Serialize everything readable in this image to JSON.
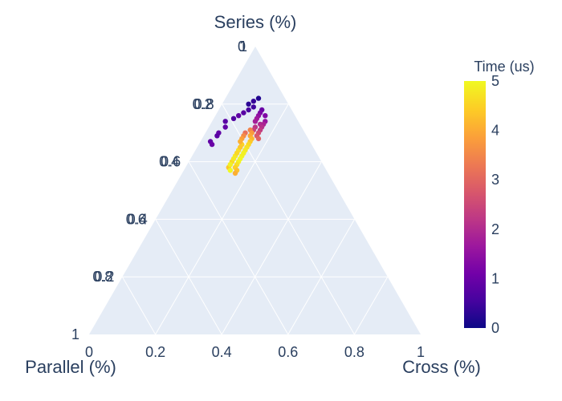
{
  "chart_data": {
    "type": "ternary-scatter",
    "axes": {
      "a": {
        "title": "Series (%)",
        "ticks": [
          "0.2",
          "0.4",
          "0.6",
          "0.8",
          "1"
        ]
      },
      "b": {
        "title": "Parallel (%)",
        "ticks": [
          "0",
          "0.2",
          "0.4",
          "0.6",
          "0.8",
          "1"
        ]
      },
      "c": {
        "title": "Cross (%)",
        "ticks": [
          "0",
          "0.2",
          "0.4",
          "0.6",
          "0.8",
          "1"
        ]
      }
    },
    "colorbar": {
      "title": "Time (us)",
      "range": [
        0,
        5
      ],
      "ticks": [
        "0",
        "1",
        "2",
        "3",
        "4",
        "5"
      ],
      "colorscale": [
        "#0d0887",
        "#46039f",
        "#7201a8",
        "#9c179e",
        "#bd3786",
        "#d8576b",
        "#ed7953",
        "#fb9f3a",
        "#fdca26",
        "#f0f921"
      ]
    },
    "points_series_fraction_and_parallel_fraction_and_time": [
      [
        0.82,
        0.08,
        0.2
      ],
      [
        0.81,
        0.1,
        0.4
      ],
      [
        0.8,
        0.12,
        0.3
      ],
      [
        0.79,
        0.11,
        0.5
      ],
      [
        0.78,
        0.13,
        0.6
      ],
      [
        0.77,
        0.15,
        0.8
      ],
      [
        0.76,
        0.17,
        0.9
      ],
      [
        0.75,
        0.19,
        0.7
      ],
      [
        0.74,
        0.22,
        0.8
      ],
      [
        0.72,
        0.23,
        0.9
      ],
      [
        0.7,
        0.26,
        0.9
      ],
      [
        0.69,
        0.27,
        0.8
      ],
      [
        0.67,
        0.3,
        0.9
      ],
      [
        0.66,
        0.3,
        1.0
      ],
      [
        0.78,
        0.09,
        1.0
      ],
      [
        0.77,
        0.1,
        1.2
      ],
      [
        0.76,
        0.11,
        1.5
      ],
      [
        0.75,
        0.12,
        1.7
      ],
      [
        0.74,
        0.13,
        1.8
      ],
      [
        0.73,
        0.12,
        2.0
      ],
      [
        0.72,
        0.14,
        2.2
      ],
      [
        0.71,
        0.15,
        2.4
      ],
      [
        0.76,
        0.09,
        1.3
      ],
      [
        0.74,
        0.1,
        1.6
      ],
      [
        0.73,
        0.11,
        1.9
      ],
      [
        0.72,
        0.12,
        2.1
      ],
      [
        0.71,
        0.13,
        2.3
      ],
      [
        0.7,
        0.14,
        2.6
      ],
      [
        0.69,
        0.15,
        2.8
      ],
      [
        0.68,
        0.15,
        3.0
      ],
      [
        0.71,
        0.16,
        3.5
      ],
      [
        0.7,
        0.16,
        3.8
      ],
      [
        0.69,
        0.17,
        4.0
      ],
      [
        0.68,
        0.17,
        4.2
      ],
      [
        0.67,
        0.18,
        4.4
      ],
      [
        0.66,
        0.19,
        4.6
      ],
      [
        0.65,
        0.2,
        4.7
      ],
      [
        0.64,
        0.21,
        4.8
      ],
      [
        0.63,
        0.22,
        4.9
      ],
      [
        0.62,
        0.23,
        4.9
      ],
      [
        0.61,
        0.24,
        5.0
      ],
      [
        0.6,
        0.25,
        4.9
      ],
      [
        0.59,
        0.26,
        4.7
      ],
      [
        0.58,
        0.27,
        4.5
      ],
      [
        0.57,
        0.27,
        4.3
      ],
      [
        0.56,
        0.28,
        4.1
      ],
      [
        0.66,
        0.21,
        4.5
      ],
      [
        0.64,
        0.23,
        4.7
      ],
      [
        0.62,
        0.25,
        4.8
      ],
      [
        0.6,
        0.27,
        4.6
      ],
      [
        0.58,
        0.29,
        4.4
      ],
      [
        0.7,
        0.18,
        3.2
      ],
      [
        0.69,
        0.19,
        3.6
      ],
      [
        0.68,
        0.2,
        3.9
      ],
      [
        0.67,
        0.21,
        4.1
      ],
      [
        0.65,
        0.22,
        4.4
      ],
      [
        0.63,
        0.24,
        4.6
      ],
      [
        0.61,
        0.26,
        4.8
      ],
      [
        0.59,
        0.28,
        4.9
      ],
      [
        0.57,
        0.29,
        5.0
      ]
    ]
  }
}
